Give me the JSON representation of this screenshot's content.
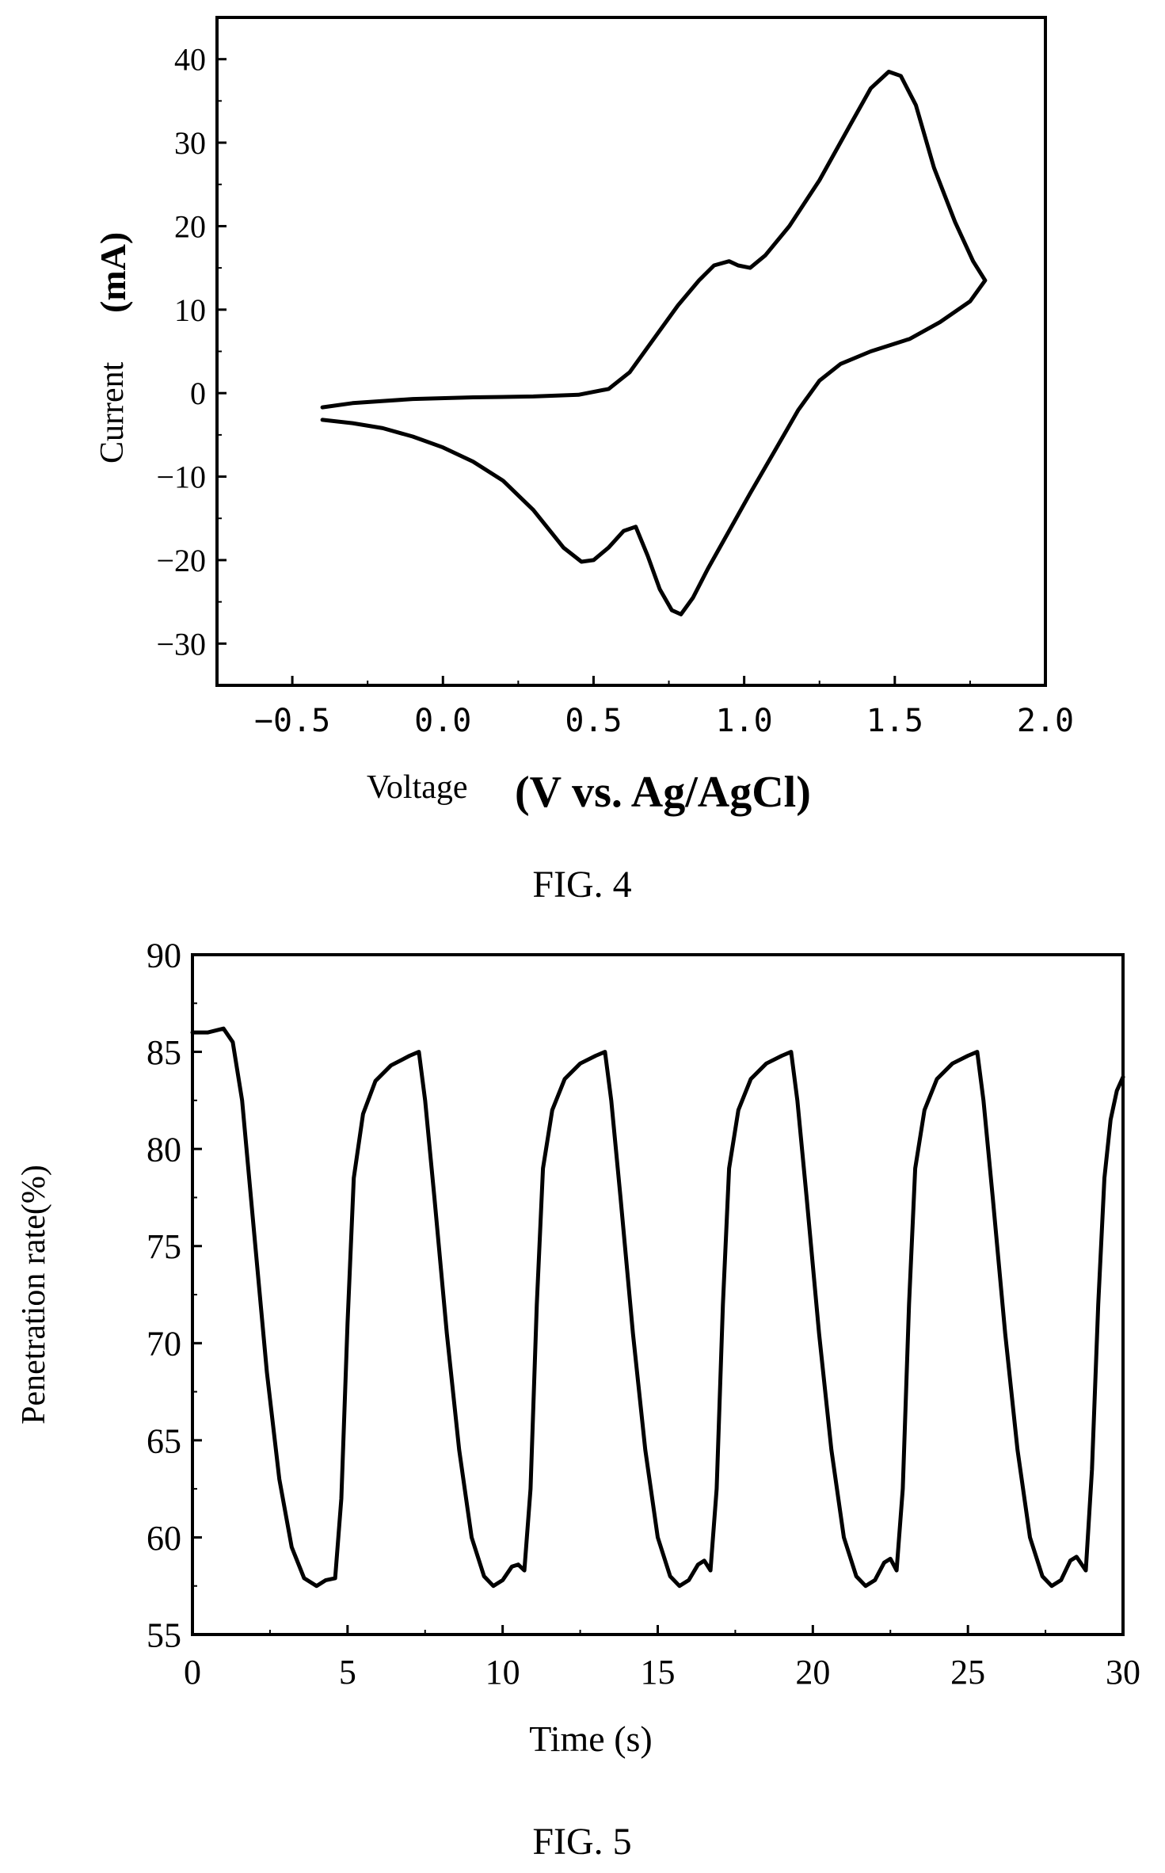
{
  "chart_data": [
    {
      "type": "line",
      "caption": "FIG. 4",
      "xlabel_main": "Voltage",
      "xlabel_units": "(V vs. Ag/AgCl)",
      "ylabel_main": "Current",
      "ylabel_units": "(mA)",
      "xlim": [
        -0.75,
        2.0
      ],
      "ylim": [
        -35,
        45
      ],
      "xticks": [
        -0.5,
        0.0,
        0.5,
        1.0,
        1.5,
        2.0
      ],
      "xtick_labels": [
        "−0.5",
        "0.0",
        "0.5",
        "1.0",
        "1.5",
        "2.0"
      ],
      "yticks": [
        -30,
        -20,
        -10,
        0,
        10,
        20,
        30,
        40
      ],
      "ytick_labels": [
        "−30",
        "−20",
        "−10",
        "0",
        "10",
        "20",
        "30",
        "40"
      ],
      "grid": false,
      "series": [
        {
          "points": [
            [
              -0.4,
              -1.7
            ],
            [
              -0.3,
              -1.2
            ],
            [
              -0.1,
              -0.7
            ],
            [
              0.1,
              -0.5
            ],
            [
              0.3,
              -0.4
            ],
            [
              0.45,
              -0.2
            ],
            [
              0.55,
              0.5
            ],
            [
              0.62,
              2.5
            ],
            [
              0.7,
              6.5
            ],
            [
              0.78,
              10.5
            ],
            [
              0.85,
              13.5
            ],
            [
              0.9,
              15.3
            ],
            [
              0.95,
              15.8
            ],
            [
              0.98,
              15.3
            ],
            [
              1.02,
              15.0
            ],
            [
              1.07,
              16.5
            ],
            [
              1.15,
              20.0
            ],
            [
              1.25,
              25.5
            ],
            [
              1.35,
              32.0
            ],
            [
              1.42,
              36.5
            ],
            [
              1.48,
              38.5
            ],
            [
              1.52,
              38.0
            ],
            [
              1.57,
              34.5
            ],
            [
              1.63,
              27.0
            ],
            [
              1.7,
              20.5
            ],
            [
              1.76,
              15.8
            ],
            [
              1.8,
              13.5
            ],
            [
              1.75,
              11.0
            ],
            [
              1.65,
              8.5
            ],
            [
              1.55,
              6.5
            ],
            [
              1.42,
              5.0
            ],
            [
              1.32,
              3.5
            ],
            [
              1.25,
              1.5
            ],
            [
              1.18,
              -2.0
            ],
            [
              1.1,
              -7.0
            ],
            [
              1.02,
              -12.0
            ],
            [
              0.95,
              -16.5
            ],
            [
              0.88,
              -21.0
            ],
            [
              0.83,
              -24.5
            ],
            [
              0.79,
              -26.5
            ],
            [
              0.76,
              -26.0
            ],
            [
              0.72,
              -23.5
            ],
            [
              0.68,
              -19.5
            ],
            [
              0.64,
              -16.0
            ],
            [
              0.6,
              -16.5
            ],
            [
              0.55,
              -18.5
            ],
            [
              0.5,
              -20.0
            ],
            [
              0.46,
              -20.2
            ],
            [
              0.4,
              -18.5
            ],
            [
              0.3,
              -14.0
            ],
            [
              0.2,
              -10.5
            ],
            [
              0.1,
              -8.2
            ],
            [
              0.0,
              -6.5
            ],
            [
              -0.1,
              -5.2
            ],
            [
              -0.2,
              -4.2
            ],
            [
              -0.3,
              -3.6
            ],
            [
              -0.4,
              -3.2
            ]
          ]
        }
      ]
    },
    {
      "type": "line",
      "caption": "FIG. 5",
      "xlabel": "Time (s)",
      "ylabel": "Penetration rate(%)",
      "xlim": [
        0,
        30
      ],
      "ylim": [
        55,
        90
      ],
      "xticks": [
        0,
        5,
        10,
        15,
        20,
        25,
        30
      ],
      "xtick_labels": [
        "0",
        "5",
        "10",
        "15",
        "20",
        "25",
        "30"
      ],
      "yticks": [
        55,
        60,
        65,
        70,
        75,
        80,
        85,
        90
      ],
      "ytick_labels": [
        "55",
        "60",
        "65",
        "70",
        "75",
        "80",
        "85",
        "90"
      ],
      "grid": false,
      "series": [
        {
          "points": [
            [
              0.0,
              86.0
            ],
            [
              0.5,
              86.0
            ],
            [
              1.0,
              86.2
            ],
            [
              1.3,
              85.5
            ],
            [
              1.6,
              82.5
            ],
            [
              2.0,
              75.5
            ],
            [
              2.4,
              68.5
            ],
            [
              2.8,
              63.0
            ],
            [
              3.2,
              59.5
            ],
            [
              3.6,
              57.9
            ],
            [
              4.0,
              57.5
            ],
            [
              4.3,
              57.8
            ],
            [
              4.6,
              57.9
            ],
            [
              4.8,
              62.0
            ],
            [
              5.0,
              71.0
            ],
            [
              5.2,
              78.5
            ],
            [
              5.5,
              81.8
            ],
            [
              5.9,
              83.5
            ],
            [
              6.4,
              84.3
            ],
            [
              7.0,
              84.8
            ],
            [
              7.3,
              85.0
            ],
            [
              7.5,
              82.5
            ],
            [
              7.8,
              77.5
            ],
            [
              8.2,
              70.5
            ],
            [
              8.6,
              64.5
            ],
            [
              9.0,
              60.0
            ],
            [
              9.4,
              58.0
            ],
            [
              9.7,
              57.5
            ],
            [
              10.0,
              57.8
            ],
            [
              10.3,
              58.5
            ],
            [
              10.5,
              58.6
            ],
            [
              10.7,
              58.3
            ],
            [
              10.9,
              62.5
            ],
            [
              11.1,
              72.0
            ],
            [
              11.3,
              79.0
            ],
            [
              11.6,
              82.0
            ],
            [
              12.0,
              83.6
            ],
            [
              12.5,
              84.4
            ],
            [
              13.0,
              84.8
            ],
            [
              13.3,
              85.0
            ],
            [
              13.5,
              82.5
            ],
            [
              13.8,
              77.5
            ],
            [
              14.2,
              70.5
            ],
            [
              14.6,
              64.5
            ],
            [
              15.0,
              60.0
            ],
            [
              15.4,
              58.0
            ],
            [
              15.7,
              57.5
            ],
            [
              16.0,
              57.8
            ],
            [
              16.3,
              58.6
            ],
            [
              16.5,
              58.8
            ],
            [
              16.7,
              58.3
            ],
            [
              16.9,
              62.5
            ],
            [
              17.1,
              72.0
            ],
            [
              17.3,
              79.0
            ],
            [
              17.6,
              82.0
            ],
            [
              18.0,
              83.6
            ],
            [
              18.5,
              84.4
            ],
            [
              19.0,
              84.8
            ],
            [
              19.3,
              85.0
            ],
            [
              19.5,
              82.5
            ],
            [
              19.8,
              77.5
            ],
            [
              20.2,
              70.5
            ],
            [
              20.6,
              64.5
            ],
            [
              21.0,
              60.0
            ],
            [
              21.4,
              58.0
            ],
            [
              21.7,
              57.5
            ],
            [
              22.0,
              57.8
            ],
            [
              22.3,
              58.7
            ],
            [
              22.5,
              58.9
            ],
            [
              22.7,
              58.3
            ],
            [
              22.9,
              62.5
            ],
            [
              23.1,
              72.0
            ],
            [
              23.3,
              79.0
            ],
            [
              23.6,
              82.0
            ],
            [
              24.0,
              83.6
            ],
            [
              24.5,
              84.4
            ],
            [
              25.0,
              84.8
            ],
            [
              25.3,
              85.0
            ],
            [
              25.5,
              82.5
            ],
            [
              25.8,
              77.5
            ],
            [
              26.2,
              70.5
            ],
            [
              26.6,
              64.5
            ],
            [
              27.0,
              60.0
            ],
            [
              27.4,
              58.0
            ],
            [
              27.7,
              57.5
            ],
            [
              28.0,
              57.8
            ],
            [
              28.3,
              58.8
            ],
            [
              28.5,
              59.0
            ],
            [
              28.8,
              58.3
            ],
            [
              29.0,
              63.5
            ],
            [
              29.2,
              72.0
            ],
            [
              29.4,
              78.5
            ],
            [
              29.6,
              81.5
            ],
            [
              29.8,
              83.0
            ],
            [
              30.0,
              83.7
            ]
          ]
        }
      ]
    }
  ]
}
